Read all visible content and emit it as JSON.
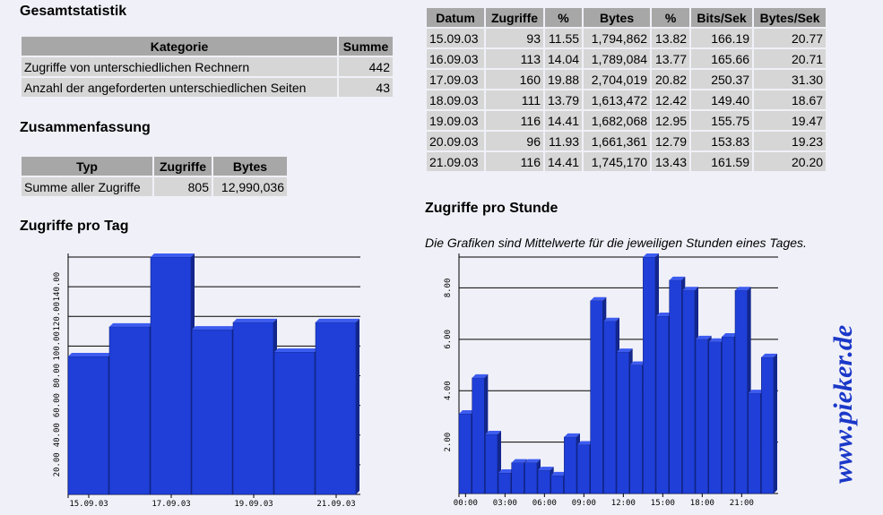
{
  "gesamt": {
    "title": "Gesamtstatistik",
    "headers": [
      "Kategorie",
      "Summe"
    ],
    "rows": [
      [
        "Zugriffe von unterschiedlichen Rechnern",
        "442"
      ],
      [
        "Anzahl der angeforderten unterschiedlichen Seiten",
        "43"
      ]
    ]
  },
  "zusammen": {
    "title": "Zusammenfassung",
    "headers": [
      "Typ",
      "Zugriffe",
      "Bytes"
    ],
    "rows": [
      [
        "Summe aller Zugriffe",
        "805",
        "12,990,036"
      ]
    ]
  },
  "daily": {
    "headers": [
      "Datum",
      "Zugriffe",
      "%",
      "Bytes",
      "%",
      "Bits/Sek",
      "Bytes/Sek"
    ],
    "rows": [
      [
        "15.09.03",
        "93",
        "11.55",
        "1,794,862",
        "13.82",
        "166.19",
        "20.77"
      ],
      [
        "16.09.03",
        "113",
        "14.04",
        "1,789,084",
        "13.77",
        "165.66",
        "20.71"
      ],
      [
        "17.09.03",
        "160",
        "19.88",
        "2,704,019",
        "20.82",
        "250.37",
        "31.30"
      ],
      [
        "18.09.03",
        "111",
        "13.79",
        "1,613,472",
        "12.42",
        "149.40",
        "18.67"
      ],
      [
        "19.09.03",
        "116",
        "14.41",
        "1,682,068",
        "12.95",
        "155.75",
        "19.47"
      ],
      [
        "20.09.03",
        "96",
        "11.93",
        "1,661,361",
        "12.79",
        "153.83",
        "19.23"
      ],
      [
        "21.09.03",
        "116",
        "14.41",
        "1,745,170",
        "13.43",
        "161.59",
        "20.20"
      ]
    ]
  },
  "tag_title": "Zugriffe pro Tag",
  "stunde_title": "Zugriffe pro Stunde",
  "stunde_note": "Die Grafiken sind Mittelwerte für die jeweiligen Stunden eines Tages.",
  "brand_text": "www.pieker.de",
  "colors": {
    "bar": "#1f3fd8",
    "bar_top": "#3d5cf0",
    "bar_side": "#12268c",
    "brand": "#1a38c8"
  },
  "chart_data": [
    {
      "type": "bar",
      "categories": [
        "15.09.03",
        "16.09.03",
        "17.09.03",
        "18.09.03",
        "19.09.03",
        "20.09.03",
        "21.09.03"
      ],
      "x_tick_labels": [
        "15.09.03",
        "17.09.03",
        "19.09.03",
        "21.09.03"
      ],
      "values": [
        93,
        113,
        160,
        111,
        116,
        96,
        116
      ],
      "y_ticks": [
        "20.00",
        "40.00",
        "60.00",
        "80.00",
        "100.00",
        "120.00",
        "140.00"
      ],
      "ylim": [
        0,
        160
      ],
      "grid": true
    },
    {
      "type": "bar",
      "categories": [
        "00",
        "01",
        "02",
        "03",
        "04",
        "05",
        "06",
        "07",
        "08",
        "09",
        "10",
        "11",
        "12",
        "13",
        "14",
        "15",
        "16",
        "17",
        "18",
        "19",
        "20",
        "21",
        "22",
        "23"
      ],
      "x_tick_labels": [
        "00:00",
        "03:00",
        "06:00",
        "09:00",
        "12:00",
        "15:00",
        "18:00",
        "21:00"
      ],
      "values": [
        3.1,
        4.5,
        2.3,
        0.8,
        1.2,
        1.2,
        0.9,
        0.7,
        2.2,
        1.9,
        7.5,
        6.7,
        5.5,
        5.0,
        9.2,
        6.9,
        8.3,
        7.9,
        6.0,
        5.9,
        6.1,
        7.9,
        3.9,
        5.3
      ],
      "y_ticks": [
        "2.00",
        "4.00",
        "6.00",
        "8.00"
      ],
      "ylim": [
        0,
        9.2
      ],
      "grid": true
    }
  ]
}
